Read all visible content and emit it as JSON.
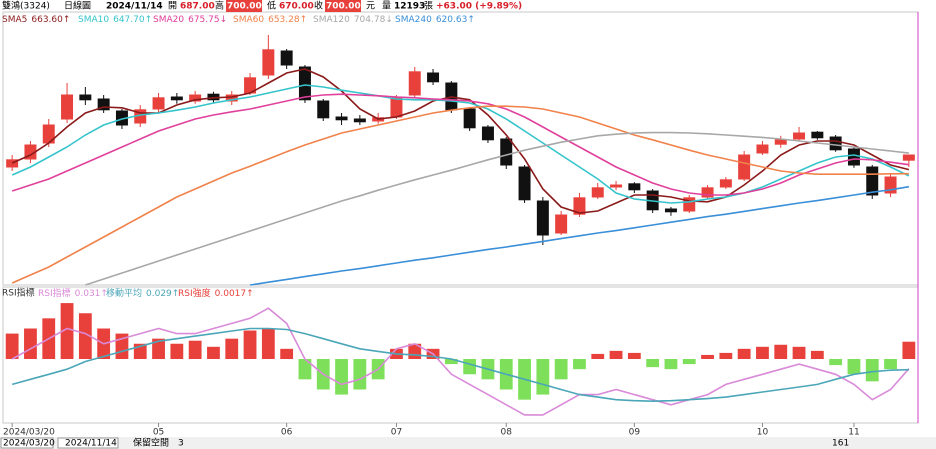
{
  "header": {
    "stock": "雙鴻(3324)",
    "chart_kind": "日線圖",
    "date": "2024/11/14",
    "open_label": "開",
    "open": "687.00",
    "high_label": "高",
    "high": "700.00",
    "low_label": "低",
    "low": "670.00",
    "close_label": "收",
    "close": "700.00",
    "unit": "元",
    "volume_label": "量",
    "volume": "12193",
    "volume_unit": "張",
    "change": "+63.00 (+9.89%)"
  },
  "chart_data": [
    {
      "type": "candlestick",
      "categories": [
        "2024/03/20",
        null,
        null,
        null,
        null,
        null,
        null,
        null,
        "05",
        null,
        null,
        null,
        null,
        null,
        null,
        "06",
        null,
        null,
        null,
        null,
        null,
        "07",
        null,
        null,
        null,
        null,
        null,
        "08",
        null,
        null,
        null,
        null,
        null,
        null,
        "09",
        null,
        null,
        null,
        null,
        null,
        null,
        "10",
        null,
        null,
        null,
        null,
        "11",
        null,
        null,
        null
      ],
      "open": [
        670,
        690,
        730,
        790,
        850,
        840,
        810,
        780,
        815,
        845,
        835,
        852,
        835,
        855,
        900,
        960,
        920,
        835,
        795,
        790,
        785,
        795,
        850,
        905,
        880,
        815,
        770,
        740,
        670,
        585,
        505,
        552,
        595,
        620,
        628,
        610,
        565,
        560,
        595,
        620,
        640,
        705,
        727,
        740,
        757,
        745,
        715,
        670,
        605,
        687
      ],
      "high": [
        700,
        735,
        790,
        880,
        870,
        850,
        815,
        825,
        855,
        855,
        860,
        858,
        860,
        905,
        1000,
        965,
        925,
        840,
        805,
        800,
        805,
        850,
        920,
        915,
        885,
        820,
        775,
        745,
        675,
        595,
        560,
        605,
        630,
        635,
        632,
        615,
        570,
        600,
        625,
        645,
        710,
        735,
        748,
        770,
        760,
        750,
        720,
        675,
        655,
        700
      ],
      "low": [
        660,
        680,
        720,
        780,
        825,
        805,
        765,
        770,
        805,
        828,
        828,
        830,
        825,
        850,
        890,
        915,
        830,
        785,
        775,
        775,
        778,
        790,
        845,
        875,
        805,
        760,
        730,
        665,
        580,
        475,
        500,
        545,
        590,
        612,
        605,
        555,
        548,
        555,
        590,
        615,
        635,
        700,
        718,
        735,
        738,
        708,
        668,
        590,
        595,
        670
      ],
      "close": [
        688,
        725,
        775,
        850,
        838,
        813,
        775,
        813,
        843,
        838,
        850,
        838,
        850,
        893,
        963,
        925,
        838,
        793,
        788,
        783,
        793,
        843,
        908,
        883,
        813,
        768,
        738,
        675,
        588,
        500,
        550,
        593,
        618,
        625,
        613,
        563,
        558,
        593,
        618,
        638,
        700,
        725,
        738,
        755,
        743,
        713,
        675,
        600,
        645,
        700
      ],
      "up_color": "#e8413c",
      "down_color": "#111111",
      "ylim": [
        375,
        1057.5
      ],
      "series": [
        {
          "name": "SMA5",
          "legend_label": "663.60↑",
          "color": "#8b1a1a",
          "values": [
            680,
            700,
            730,
            770,
            805,
            820,
            818,
            805,
            805,
            825,
            838,
            843,
            845,
            855,
            880,
            905,
            915,
            895,
            860,
            815,
            790,
            795,
            810,
            835,
            845,
            838,
            800,
            750,
            690,
            615,
            570,
            555,
            560,
            580,
            600,
            600,
            595,
            585,
            583,
            595,
            625,
            660,
            700,
            725,
            735,
            735,
            725,
            700,
            675,
            663.6
          ]
        },
        {
          "name": "SMA10",
          "legend_label": "647.70↑",
          "color": "#35c4cc",
          "values": [
            650,
            670,
            695,
            720,
            750,
            775,
            790,
            800,
            805,
            812,
            820,
            830,
            838,
            845,
            855,
            865,
            875,
            870,
            862,
            855,
            848,
            840,
            838,
            838,
            835,
            830,
            815,
            790,
            760,
            730,
            700,
            670,
            640,
            605,
            590,
            585,
            580,
            583,
            590,
            595,
            605,
            620,
            640,
            660,
            680,
            695,
            700,
            690,
            670,
            647.7
          ]
        },
        {
          "name": "SMA20",
          "legend_label": "675.75↓",
          "color": "#e0409c",
          "values": [
            610,
            625,
            640,
            660,
            680,
            700,
            720,
            740,
            760,
            775,
            790,
            800,
            808,
            815,
            825,
            835,
            845,
            850,
            852,
            850,
            848,
            845,
            843,
            840,
            838,
            835,
            828,
            815,
            795,
            770,
            745,
            720,
            695,
            670,
            650,
            630,
            615,
            605,
            600,
            600,
            605,
            615,
            630,
            650,
            665,
            680,
            690,
            688,
            682,
            675.75
          ]
        },
        {
          "name": "SMA60",
          "legend_label": "653.28↑",
          "color": "#f0824a",
          "values": [
            380,
            400,
            420,
            445,
            470,
            495,
            520,
            545,
            570,
            595,
            615,
            635,
            655,
            672,
            690,
            708,
            725,
            740,
            755,
            765,
            775,
            785,
            795,
            805,
            812,
            818,
            822,
            822,
            820,
            815,
            805,
            795,
            780,
            765,
            750,
            738,
            725,
            712,
            700,
            690,
            680,
            670,
            660,
            655,
            652,
            652,
            652,
            652,
            653,
            653.28
          ]
        },
        {
          "name": "SMA120",
          "legend_label": "704.78↓",
          "color": "#a8a8a8",
          "values": [
            null,
            null,
            null,
            null,
            375,
            390,
            405,
            420,
            435,
            450,
            465,
            480,
            495,
            510,
            525,
            540,
            555,
            570,
            585,
            598,
            612,
            625,
            638,
            650,
            662,
            675,
            688,
            700,
            712,
            722,
            732,
            740,
            748,
            752,
            755,
            756,
            756,
            755,
            753,
            750,
            747,
            744,
            740,
            735,
            730,
            725,
            720,
            715,
            710,
            704.78
          ]
        },
        {
          "name": "SMA240",
          "legend_label": "620.63↑",
          "color": "#3a8fd8",
          "values": [
            null,
            null,
            null,
            null,
            null,
            null,
            null,
            null,
            null,
            null,
            null,
            null,
            null,
            375,
            382,
            389,
            396,
            403,
            410,
            416,
            423,
            430,
            437,
            443,
            450,
            457,
            464,
            470,
            477,
            484,
            491,
            498,
            505,
            511,
            518,
            525,
            532,
            539,
            546,
            552,
            559,
            566,
            573,
            580,
            586,
            593,
            600,
            607,
            613,
            620.63
          ]
        }
      ]
    },
    {
      "type": "oscillator",
      "title": "RSI指標",
      "ylim": [
        -0.07,
        0.17
      ],
      "y2lim": [
        -0.006,
        0.006
      ],
      "series": [
        {
          "name": "RSI指標",
          "legend_label": "0.031↑",
          "color": "#d98ad8",
          "values": [
            0.05,
            0.07,
            0.09,
            0.11,
            0.1,
            0.08,
            0.09,
            0.1,
            0.11,
            0.1,
            0.1,
            0.11,
            0.12,
            0.13,
            0.15,
            0.12,
            0.05,
            0.02,
            0.0,
            0.01,
            0.03,
            0.07,
            0.08,
            0.06,
            0.02,
            0.0,
            -0.02,
            -0.04,
            -0.06,
            -0.06,
            -0.04,
            -0.02,
            -0.02,
            -0.01,
            -0.02,
            -0.03,
            -0.04,
            -0.03,
            -0.02,
            0.0,
            0.01,
            0.02,
            0.03,
            0.04,
            0.03,
            0.02,
            0.0,
            -0.03,
            -0.01,
            0.031
          ]
        },
        {
          "name": "移動平均",
          "legend_label": "0.029↑",
          "color": "#4aa6b8",
          "values": [
            0.0,
            0.01,
            0.02,
            0.03,
            0.045,
            0.055,
            0.065,
            0.075,
            0.085,
            0.09,
            0.095,
            0.1,
            0.105,
            0.11,
            0.11,
            0.108,
            0.1,
            0.09,
            0.08,
            0.07,
            0.065,
            0.06,
            0.058,
            0.055,
            0.05,
            0.04,
            0.03,
            0.02,
            0.01,
            0.0,
            -0.01,
            -0.02,
            -0.025,
            -0.03,
            -0.032,
            -0.033,
            -0.032,
            -0.03,
            -0.028,
            -0.025,
            -0.02,
            -0.015,
            -0.01,
            -0.005,
            0.0,
            0.01,
            0.02,
            0.025,
            0.028,
            0.029
          ]
        },
        {
          "name": "RSI強度",
          "legend_label": "0.0017↑",
          "kind": "bar",
          "axis": "y2",
          "color": "#e8413c",
          "down_color": "#7ee05a",
          "values": [
            0.0025,
            0.003,
            0.004,
            0.0055,
            0.0045,
            0.003,
            0.0025,
            0.0015,
            0.002,
            0.0015,
            0.0018,
            0.0012,
            0.002,
            0.0028,
            0.003,
            0.001,
            -0.002,
            -0.003,
            -0.0035,
            -0.003,
            -0.002,
            0.001,
            0.0015,
            0.001,
            -0.0005,
            -0.0015,
            -0.002,
            -0.003,
            -0.004,
            -0.0035,
            -0.002,
            -0.001,
            0.0005,
            0.0008,
            0.0006,
            -0.0008,
            -0.001,
            -0.0005,
            0.0004,
            0.0006,
            0.001,
            0.0012,
            0.0014,
            0.0012,
            0.0008,
            -0.0006,
            -0.0015,
            -0.0022,
            -0.001,
            0.0017
          ]
        }
      ]
    }
  ],
  "footer": {
    "start": "2024/03/20",
    "end": "2024/11/14",
    "reserve_label": "保留空間",
    "reserve": "3",
    "count": "161"
  }
}
